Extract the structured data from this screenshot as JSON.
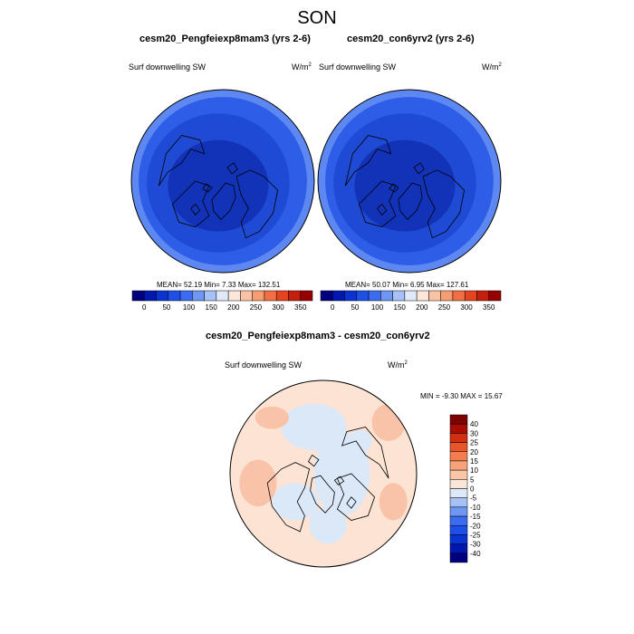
{
  "figure": {
    "title": "SON"
  },
  "panels": [
    {
      "id": "left",
      "title": "cesm20_Pengfeiexp8mam3 (yrs 2-6)",
      "variable": "Surf downwelling SW",
      "units": "W/m",
      "units_exp": "2",
      "stats": "MEAN=  52.19  Min=   7.33  Max= 132.51"
    },
    {
      "id": "right",
      "title": "cesm20_con6yrv2 (yrs 2-6)",
      "variable": "Surf downwelling SW",
      "units": "W/m",
      "units_exp": "2",
      "stats": "MEAN=  50.07  Min=   6.95  Max= 127.61"
    }
  ],
  "diff_panel": {
    "title": "cesm20_Pengfeiexp8mam3 - cesm20_con6yrv2",
    "variable": "Surf downwelling SW",
    "units": "W/m",
    "units_exp": "2",
    "stats": "MIN =  -9.30 MAX =  15.67"
  },
  "colors": {
    "abs_scale": [
      "#00007f",
      "#0018b0",
      "#0a33d4",
      "#1e50e8",
      "#3b6cf0",
      "#6e97f3",
      "#a6c1f5",
      "#dfe9f9",
      "#fde7dc",
      "#fbc3a6",
      "#f79d72",
      "#f16f43",
      "#e44420",
      "#c61e0d",
      "#960000"
    ],
    "diff_scale": [
      "#00007f",
      "#0018b0",
      "#0a33d4",
      "#1e50e8",
      "#3b6cf0",
      "#6e97f3",
      "#a6c1f5",
      "#dde9f8",
      "#fbe5d6",
      "#f9c6a8",
      "#f6a37a",
      "#f27d4e",
      "#e85528",
      "#d0300f",
      "#a80c02",
      "#7f0000"
    ],
    "map_abs_outer": "#2e5ee8",
    "map_abs_mid": "#1f4ad4",
    "map_abs_inner": "#1233b8",
    "map_abs_ring": "#5d88f2",
    "map_diff_base": "#fde3d3",
    "map_diff_blue": "#dbe8f8",
    "map_diff_warm": "#f8c3a8"
  },
  "chart_data": [
    {
      "type": "heatmap",
      "title": "cesm20_Pengfeiexp8mam3 (yrs 2-6)",
      "subtitle": "Surf downwelling SW",
      "units": "W/m2",
      "colorbar_ticks": [
        "0",
        "50",
        "100",
        "150",
        "200",
        "250",
        "300",
        "350"
      ],
      "colorbar_range": [
        0,
        350
      ],
      "stats": {
        "mean": 52.19,
        "min": 7.33,
        "max": 132.51
      }
    },
    {
      "type": "heatmap",
      "title": "cesm20_con6yrv2 (yrs 2-6)",
      "subtitle": "Surf downwelling SW",
      "units": "W/m2",
      "colorbar_ticks": [
        "0",
        "50",
        "100",
        "150",
        "200",
        "250",
        "300",
        "350"
      ],
      "colorbar_range": [
        0,
        350
      ],
      "stats": {
        "mean": 50.07,
        "min": 6.95,
        "max": 127.61
      }
    },
    {
      "type": "heatmap",
      "title": "cesm20_Pengfeiexp8mam3 - cesm20_con6yrv2",
      "subtitle": "Surf downwelling SW",
      "units": "W/m2",
      "colorbar_ticks": [
        "40",
        "30",
        "25",
        "20",
        "15",
        "10",
        "5",
        "0",
        "-5",
        "-10",
        "-15",
        "-20",
        "-25",
        "-30",
        "-40"
      ],
      "colorbar_range": [
        -40,
        40
      ],
      "stats": {
        "min": -9.3,
        "max": 15.67
      }
    }
  ]
}
